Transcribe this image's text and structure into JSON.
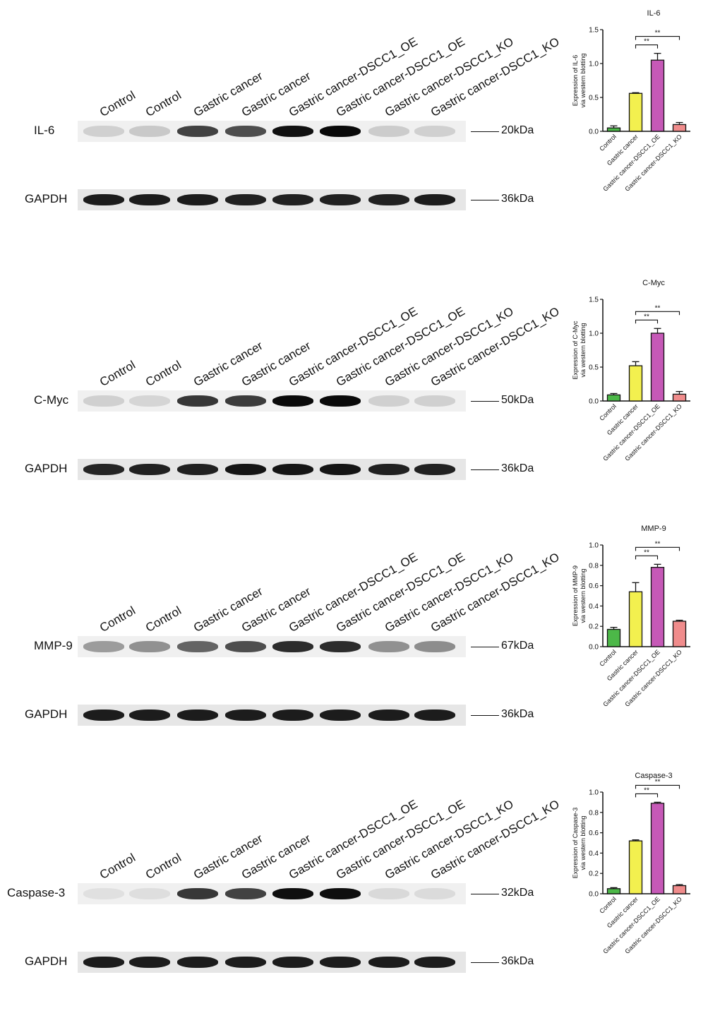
{
  "lane_labels": [
    "Control",
    "Control",
    "Gastric cancer",
    "Gastric cancer",
    "Gastric cancer-DSCC1_OE",
    "Gastric cancer-DSCC1_OE",
    "Gastric cancer-DSCC1_KO",
    "Gastric cancer-DSCC1_KO"
  ],
  "loading_control": "GAPDH",
  "panels": [
    {
      "protein": "IL-6",
      "marker": "20kDa",
      "gapdh_marker": "36kDa",
      "band_intensity": [
        0.12,
        0.15,
        0.75,
        0.7,
        0.97,
        1.0,
        0.14,
        0.12
      ],
      "gapdh_intensity": [
        0.92,
        0.92,
        0.92,
        0.9,
        0.9,
        0.9,
        0.9,
        0.92
      ],
      "chart_data": {
        "type": "bar",
        "title": "IL-6",
        "ylabel": [
          "Expression of IL-6",
          "via western blotting"
        ],
        "categories": [
          "Control",
          "Gastric cancer",
          "Gastric cancer-DSCC1_OE",
          "Gastric cancer-DSCC1_KO"
        ],
        "values": [
          0.05,
          0.56,
          1.05,
          0.1
        ],
        "errors": [
          0.03,
          0.01,
          0.1,
          0.03
        ],
        "colors": [
          "#4cb848",
          "#f3f04f",
          "#c659b7",
          "#f08c8c"
        ],
        "ylim": [
          0,
          1.5
        ],
        "yticks": [
          0,
          0.5,
          1.0,
          1.5
        ],
        "ytick_labels": [
          "0.0",
          "0.5",
          "1.0",
          "1.5"
        ],
        "significance": [
          {
            "from": 1,
            "to": 2,
            "label": "**"
          },
          {
            "from": 1,
            "to": 3,
            "label": "**"
          }
        ]
      }
    },
    {
      "protein": "C-Myc",
      "marker": "50kDa",
      "gapdh_marker": "36kDa",
      "band_intensity": [
        0.12,
        0.1,
        0.8,
        0.78,
        1.0,
        1.0,
        0.12,
        0.12
      ],
      "gapdh_intensity": [
        0.88,
        0.9,
        0.9,
        0.95,
        0.95,
        0.95,
        0.9,
        0.9
      ],
      "chart_data": {
        "type": "bar",
        "title": "C-Myc",
        "ylabel": [
          "Expression of C-Myc",
          "via western blotting"
        ],
        "categories": [
          "Control",
          "Gastric cancer",
          "Gastric cancer-DSCC1_OE",
          "Gastric cancer-DSCC1_KO"
        ],
        "values": [
          0.09,
          0.52,
          1.0,
          0.1
        ],
        "errors": [
          0.02,
          0.06,
          0.07,
          0.04
        ],
        "colors": [
          "#4cb848",
          "#f3f04f",
          "#c659b7",
          "#f08c8c"
        ],
        "ylim": [
          0,
          1.5
        ],
        "yticks": [
          0,
          0.5,
          1.0,
          1.5
        ],
        "ytick_labels": [
          "0.0",
          "0.5",
          "1.0",
          "1.5"
        ],
        "significance": [
          {
            "from": 1,
            "to": 2,
            "label": "**"
          },
          {
            "from": 1,
            "to": 3,
            "label": "**"
          }
        ]
      }
    },
    {
      "protein": "MMP-9",
      "marker": "67kDa",
      "gapdh_marker": "36kDa",
      "band_intensity": [
        0.35,
        0.4,
        0.6,
        0.7,
        0.85,
        0.85,
        0.4,
        0.42
      ],
      "gapdh_intensity": [
        0.92,
        0.92,
        0.92,
        0.92,
        0.92,
        0.92,
        0.92,
        0.92
      ],
      "chart_data": {
        "type": "bar",
        "title": "MMP-9",
        "ylabel": [
          "Expression of MMP-9",
          "via western blotting"
        ],
        "categories": [
          "Control",
          "Gastric cancer",
          "Gastric cancer-DSCC1_OE",
          "Gastric cancer-DSCC1_KO"
        ],
        "values": [
          0.17,
          0.54,
          0.78,
          0.25
        ],
        "errors": [
          0.02,
          0.09,
          0.03,
          0.01
        ],
        "colors": [
          "#4cb848",
          "#f3f04f",
          "#c659b7",
          "#f08c8c"
        ],
        "ylim": [
          0,
          1.0
        ],
        "yticks": [
          0,
          0.2,
          0.4,
          0.6,
          0.8,
          1.0
        ],
        "ytick_labels": [
          "0.0",
          "0.2",
          "0.4",
          "0.6",
          "0.8",
          "1.0"
        ],
        "significance": [
          {
            "from": 1,
            "to": 2,
            "label": "**"
          },
          {
            "from": 1,
            "to": 3,
            "label": "**"
          }
        ]
      }
    },
    {
      "protein": "Caspase-3",
      "marker": "32kDa",
      "gapdh_marker": "36kDa",
      "band_intensity": [
        0.05,
        0.06,
        0.8,
        0.75,
        0.98,
        0.98,
        0.08,
        0.07
      ],
      "gapdh_intensity": [
        0.92,
        0.92,
        0.92,
        0.92,
        0.92,
        0.92,
        0.92,
        0.92
      ],
      "chart_data": {
        "type": "bar",
        "title": "Caspase-3",
        "ylabel": [
          "Expression of Caspase-3",
          "via western blotting"
        ],
        "categories": [
          "Control",
          "Gastric cancer",
          "Gastric cancer-DSCC1_OE",
          "Gastric cancer-DSCC1_KO"
        ],
        "values": [
          0.05,
          0.52,
          0.89,
          0.08
        ],
        "errors": [
          0.01,
          0.01,
          0.01,
          0.01
        ],
        "colors": [
          "#4cb848",
          "#f3f04f",
          "#c659b7",
          "#f08c8c"
        ],
        "ylim": [
          0,
          1.0
        ],
        "yticks": [
          0,
          0.2,
          0.4,
          0.6,
          0.8,
          1.0
        ],
        "ytick_labels": [
          "0.0",
          "0.2",
          "0.4",
          "0.6",
          "0.8",
          "1.0"
        ],
        "significance": [
          {
            "from": 1,
            "to": 2,
            "label": "**"
          },
          {
            "from": 1,
            "to": 3,
            "label": "**"
          }
        ]
      }
    }
  ]
}
